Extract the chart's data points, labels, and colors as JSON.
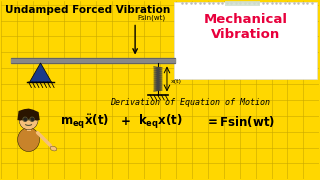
{
  "bg_color": "#FFD700",
  "title": "Undamped Forced Vibration",
  "title_fontsize": 7.5,
  "title_color": "#000000",
  "mech_vib_text": "Mechanical\nVibration",
  "mech_vib_color": "#E8003C",
  "mech_vib_fontsize": 9.5,
  "derive_text": "Derivation of Equation of Motion",
  "derive_fontsize": 6.0,
  "grid_color": "#C8A800",
  "beam_color": "#888888",
  "beam_dark": "#555555",
  "spring_color": "#444444",
  "triangle_color": "#1a3a8a",
  "note_bg": "#FFFFFF",
  "note_edge": "#dddddd",
  "tape_color": "#d0dfd0",
  "fsin_label": "Fsin(wt)",
  "xt_label": "x(t)",
  "eq_fontsize": 8.5,
  "derive_italic": true,
  "char_body": "#c8832a",
  "char_skin": "#f5c07a",
  "char_hair": "#2a1500"
}
